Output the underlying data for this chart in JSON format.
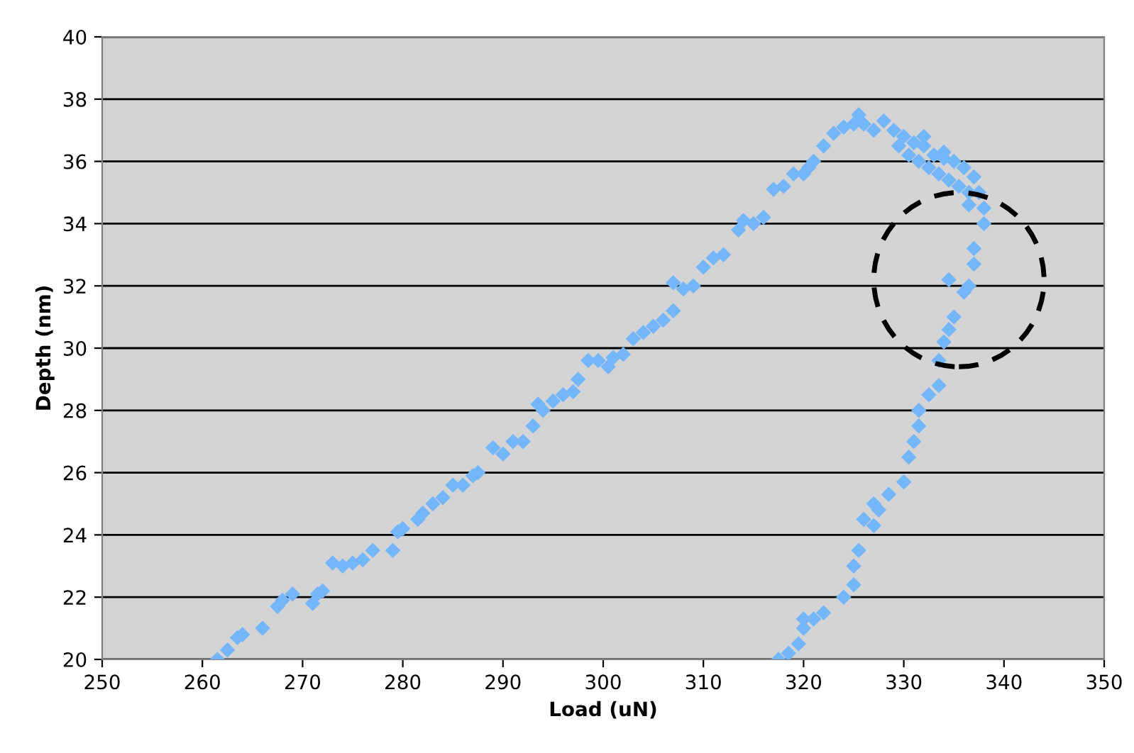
{
  "chart_data": {
    "type": "scatter",
    "xlabel": "Load (uN)",
    "ylabel": "Depth (nm)",
    "xlim": [
      250,
      350
    ],
    "xticks": [
      250,
      260,
      270,
      280,
      290,
      300,
      310,
      320,
      330,
      340,
      350
    ],
    "ylim": [
      20,
      40
    ],
    "yticks": [
      20,
      22,
      24,
      26,
      28,
      30,
      32,
      34,
      36,
      38,
      40
    ],
    "grid": "y",
    "marker": "diamond",
    "legend": false,
    "series": [
      {
        "color": "#74b6fa",
        "x": [
          261.5,
          262.5,
          263.5,
          264,
          266,
          267.5,
          268,
          269,
          271,
          271.5,
          272,
          273,
          274,
          275,
          276,
          277,
          279,
          279.5,
          280,
          281.5,
          282,
          283,
          284,
          285,
          286,
          287,
          287.5,
          289,
          290,
          291,
          292,
          293,
          293.5,
          294,
          295,
          296,
          297,
          297.5,
          298.5,
          299.5,
          300.5,
          301,
          302,
          303,
          304,
          305,
          306,
          307,
          307,
          308,
          309,
          310,
          311,
          312,
          313.5,
          314,
          315,
          316,
          317,
          318,
          319,
          320,
          320.5,
          321,
          322,
          323,
          324,
          325,
          325.5,
          326,
          327,
          328,
          329,
          329.5,
          330,
          330.5,
          331,
          331.5,
          332,
          332,
          332.5,
          333,
          333.5,
          334,
          334,
          334.5,
          335,
          335.5,
          336,
          336.5,
          336.5,
          337,
          337.5,
          338,
          338,
          337,
          337,
          336.5,
          336,
          334.5,
          335,
          334.5,
          334,
          333.5,
          333.5,
          332.5,
          331.5,
          331.5,
          331,
          330.5,
          330,
          328.5,
          327.5,
          327,
          327,
          326,
          325.5,
          325,
          325,
          324,
          322,
          321,
          320,
          320,
          319.5,
          318.5,
          317.5
        ],
        "values": [
          20,
          20.3,
          20.7,
          20.8,
          21,
          21.7,
          21.9,
          22.1,
          21.8,
          22.1,
          22.2,
          23.1,
          23,
          23.1,
          23.2,
          23.5,
          23.5,
          24.1,
          24.2,
          24.5,
          24.7,
          25,
          25.2,
          25.6,
          25.6,
          25.9,
          26,
          26.8,
          26.6,
          27,
          27,
          27.5,
          28.2,
          28,
          28.3,
          28.5,
          28.6,
          29,
          29.6,
          29.6,
          29.4,
          29.7,
          29.8,
          30.3,
          30.5,
          30.7,
          30.9,
          31.2,
          32.1,
          31.9,
          32,
          32.6,
          32.9,
          33,
          33.8,
          34.1,
          34,
          34.2,
          35.1,
          35.2,
          35.6,
          35.6,
          35.8,
          36,
          36.5,
          36.9,
          37.1,
          37.2,
          37.5,
          37.2,
          37,
          37.3,
          37,
          36.5,
          36.8,
          36.2,
          36.6,
          36,
          36.5,
          36.8,
          35.8,
          36.2,
          35.6,
          36.1,
          36.3,
          35.4,
          36,
          35.2,
          35.8,
          35,
          34.6,
          35.5,
          35,
          34.5,
          34,
          33.2,
          32.7,
          32,
          31.8,
          32.2,
          31,
          30.6,
          30.2,
          29.6,
          28.8,
          28.5,
          28,
          27.5,
          27,
          26.5,
          25.7,
          25.3,
          24.8,
          24.3,
          25,
          24.5,
          23.5,
          23,
          22.4,
          22,
          21.5,
          21.3,
          21.3,
          21,
          20.5,
          20.2,
          20
        ]
      }
    ]
  }
}
